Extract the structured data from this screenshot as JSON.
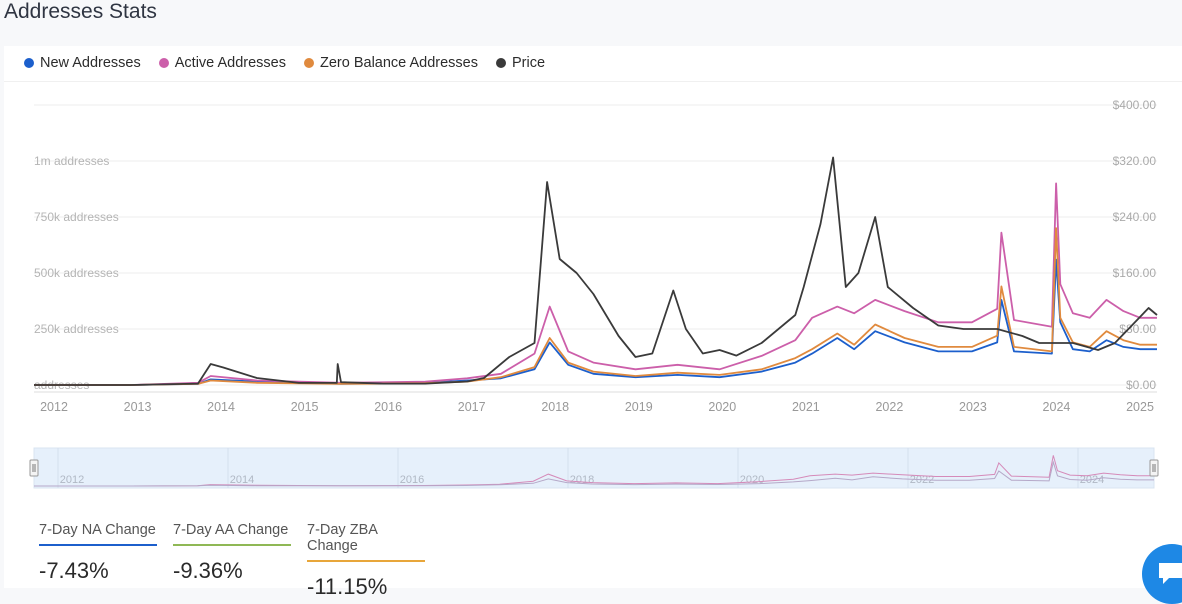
{
  "page": {
    "title": "Addresses Stats"
  },
  "legend": [
    {
      "label": "New Addresses",
      "color": "#1c5fcc"
    },
    {
      "label": "Active Addresses",
      "color": "#cc5faa"
    },
    {
      "label": "Zero Balance Addresses",
      "color": "#e08a3e"
    },
    {
      "label": "Price",
      "color": "#3a3a3a"
    }
  ],
  "changes": [
    {
      "label": "7-Day NA Change",
      "value": "-7.43%",
      "color": "#1c5fcc"
    },
    {
      "label": "7-Day AA Change",
      "value": "-9.36%",
      "color": "#8fb855"
    },
    {
      "label": "7-Day ZBA Change",
      "value": "-11.15%",
      "color": "#e8a63a"
    }
  ],
  "icons": {
    "chat": "chat-icon",
    "range_handle": "drag-handle-icon"
  },
  "chart_data": {
    "type": "line",
    "x_ticks": [
      "2012",
      "2013",
      "2014",
      "2015",
      "2016",
      "2017",
      "2018",
      "2019",
      "2020",
      "2021",
      "2022",
      "2023",
      "2024",
      "2025"
    ],
    "navigator_ticks": [
      "2012",
      "2014",
      "2016",
      "2018",
      "2020",
      "2022",
      "2024"
    ],
    "y_left_ticks": [
      "addresses",
      "250k addresses",
      "500k addresses",
      "750k addresses",
      "1m addresses"
    ],
    "y_right_ticks": [
      "$0.00",
      "$80.00",
      "$160.00",
      "$240.00",
      "$320.00",
      "$400.00"
    ],
    "y_left_range": [
      0,
      1000000
    ],
    "y_right_range": [
      0,
      400
    ],
    "x_range": [
      2011.85,
      2025.2
    ],
    "grid": true,
    "legend_position": "top-left",
    "series": [
      {
        "name": "New Addresses",
        "axis": "left",
        "x": [
          2011.85,
          2013.0,
          2013.8,
          2013.95,
          2014.5,
          2015.5,
          2016.5,
          2017.0,
          2017.4,
          2017.8,
          2017.98,
          2018.2,
          2018.5,
          2019.0,
          2019.5,
          2020.0,
          2020.5,
          2020.9,
          2021.1,
          2021.4,
          2021.6,
          2021.85,
          2022.2,
          2022.6,
          2023.0,
          2023.3,
          2023.35,
          2023.5,
          2023.95,
          2024.0,
          2024.05,
          2024.2,
          2024.4,
          2024.6,
          2024.8,
          2025.0,
          2025.2
        ],
        "values": [
          0,
          0,
          5000,
          25000,
          15000,
          5000,
          10000,
          20000,
          30000,
          70000,
          190000,
          90000,
          50000,
          35000,
          45000,
          35000,
          60000,
          100000,
          140000,
          210000,
          160000,
          240000,
          190000,
          150000,
          150000,
          190000,
          380000,
          150000,
          140000,
          560000,
          280000,
          160000,
          150000,
          200000,
          170000,
          160000,
          160000
        ]
      },
      {
        "name": "Active Addresses",
        "axis": "left",
        "x": [
          2011.85,
          2013.0,
          2013.8,
          2013.95,
          2014.5,
          2015.5,
          2016.5,
          2017.0,
          2017.4,
          2017.8,
          2017.98,
          2018.2,
          2018.5,
          2019.0,
          2019.5,
          2020.0,
          2020.5,
          2020.9,
          2021.1,
          2021.4,
          2021.6,
          2021.85,
          2022.2,
          2022.6,
          2023.0,
          2023.3,
          2023.35,
          2023.5,
          2023.95,
          2024.0,
          2024.05,
          2024.2,
          2024.4,
          2024.6,
          2024.8,
          2025.0,
          2025.2
        ],
        "values": [
          0,
          0,
          10000,
          40000,
          20000,
          10000,
          15000,
          30000,
          50000,
          140000,
          350000,
          150000,
          100000,
          70000,
          90000,
          70000,
          130000,
          200000,
          300000,
          350000,
          320000,
          380000,
          330000,
          280000,
          280000,
          340000,
          680000,
          290000,
          260000,
          900000,
          450000,
          320000,
          300000,
          380000,
          330000,
          300000,
          300000
        ]
      },
      {
        "name": "Zero Balance Addresses",
        "axis": "left",
        "x": [
          2011.85,
          2013.0,
          2013.8,
          2013.95,
          2014.5,
          2015.5,
          2016.5,
          2017.0,
          2017.4,
          2017.8,
          2017.98,
          2018.2,
          2018.5,
          2019.0,
          2019.5,
          2020.0,
          2020.5,
          2020.9,
          2021.1,
          2021.4,
          2021.6,
          2021.85,
          2022.2,
          2022.6,
          2023.0,
          2023.3,
          2023.35,
          2023.5,
          2023.95,
          2024.0,
          2024.05,
          2024.2,
          2024.4,
          2024.6,
          2024.8,
          2025.0,
          2025.2
        ],
        "values": [
          0,
          0,
          5000,
          20000,
          10000,
          5000,
          8000,
          15000,
          35000,
          80000,
          210000,
          100000,
          60000,
          40000,
          55000,
          45000,
          70000,
          120000,
          160000,
          230000,
          180000,
          270000,
          210000,
          170000,
          170000,
          220000,
          440000,
          170000,
          150000,
          700000,
          300000,
          190000,
          170000,
          240000,
          200000,
          180000,
          180000
        ]
      },
      {
        "name": "Price",
        "axis": "right",
        "x": [
          2011.85,
          2013.0,
          2013.8,
          2013.95,
          2014.1,
          2014.5,
          2015.0,
          2015.45,
          2015.46,
          2015.5,
          2016.0,
          2016.5,
          2017.0,
          2017.2,
          2017.5,
          2017.8,
          2017.95,
          2018.1,
          2018.3,
          2018.5,
          2018.8,
          2019.0,
          2019.2,
          2019.45,
          2019.6,
          2019.8,
          2020.0,
          2020.2,
          2020.5,
          2020.9,
          2021.0,
          2021.2,
          2021.35,
          2021.5,
          2021.65,
          2021.85,
          2022.0,
          2022.3,
          2022.6,
          2022.9,
          2023.0,
          2023.3,
          2023.6,
          2023.8,
          2024.0,
          2024.2,
          2024.5,
          2024.7,
          2024.9,
          2025.1,
          2025.2
        ],
        "values": [
          0,
          0,
          2,
          30,
          25,
          10,
          3,
          3,
          30,
          4,
          2,
          2,
          5,
          10,
          40,
          60,
          290,
          180,
          160,
          130,
          70,
          40,
          45,
          135,
          80,
          45,
          50,
          42,
          60,
          100,
          140,
          230,
          325,
          140,
          160,
          240,
          140,
          110,
          85,
          80,
          80,
          80,
          70,
          60,
          60,
          60,
          50,
          60,
          85,
          110,
          100
        ]
      }
    ]
  }
}
